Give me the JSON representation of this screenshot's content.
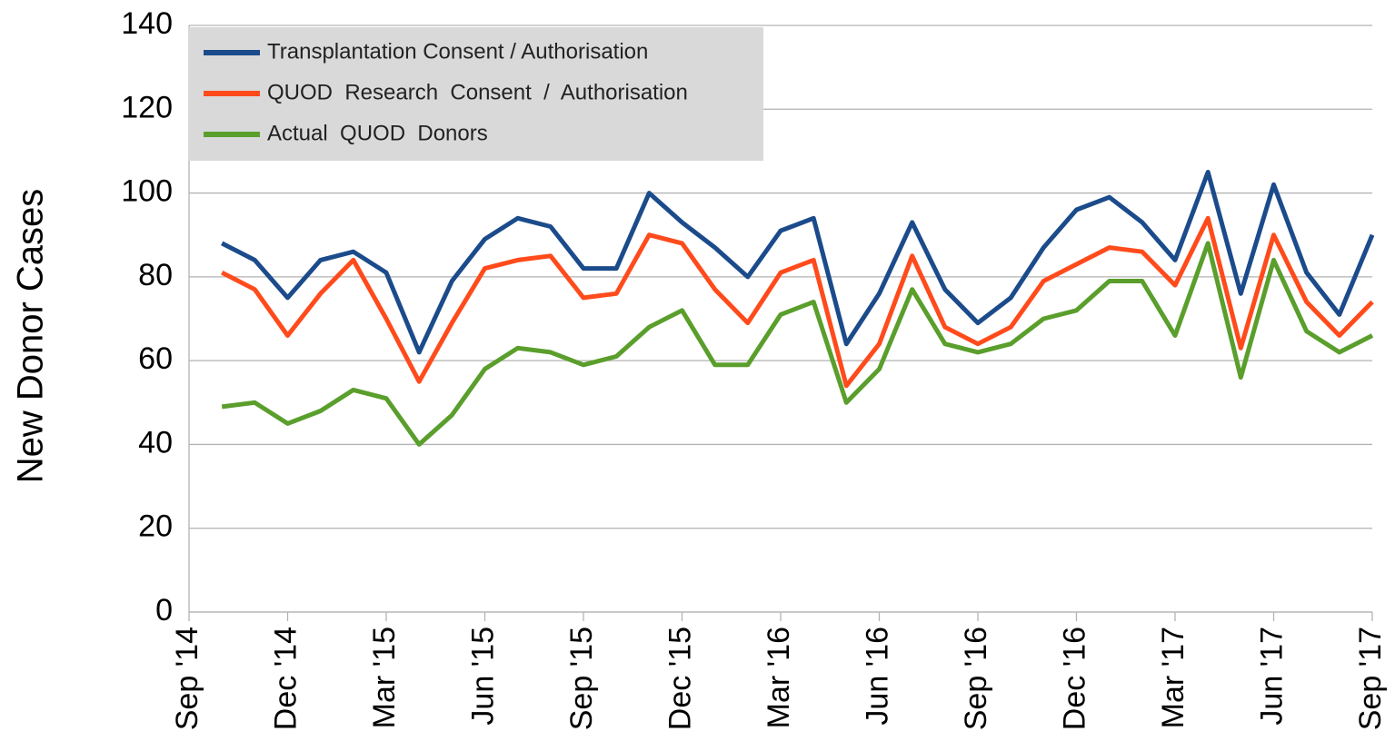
{
  "chart_data": {
    "type": "line",
    "y_label": "New Donor Cases",
    "categories": [
      "Sep '14",
      null,
      null,
      "Dec '14",
      null,
      null,
      "Mar '15",
      null,
      null,
      "Jun '15",
      null,
      null,
      "Sep '15",
      null,
      null,
      "Dec '15",
      null,
      null,
      "Mar '16",
      null,
      null,
      "Jun '16",
      null,
      null,
      "Sep '16",
      null,
      null,
      "Dec '16",
      null,
      null,
      "Mar '17",
      null,
      null,
      "Jun '17",
      null,
      null,
      "Sep '17"
    ],
    "series": [
      {
        "name": "Transplantation Consent / Authorisation",
        "color": "#1b4b8b",
        "values": [
          null,
          88,
          84,
          75,
          84,
          86,
          81,
          62,
          79,
          89,
          94,
          92,
          82,
          82,
          100,
          93,
          87,
          80,
          91,
          94,
          64,
          76,
          93,
          77,
          69,
          75,
          87,
          96,
          99,
          93,
          84,
          105,
          76,
          102,
          81,
          71,
          90
        ]
      },
      {
        "name": "QUOD  Research  Consent  /  Authorisation",
        "color": "#ff4b1c",
        "values": [
          null,
          81,
          77,
          66,
          76,
          84,
          70,
          55,
          69,
          82,
          84,
          85,
          75,
          76,
          90,
          88,
          77,
          69,
          81,
          84,
          54,
          64,
          85,
          68,
          64,
          68,
          79,
          83,
          87,
          86,
          78,
          94,
          63,
          90,
          74,
          66,
          74
        ]
      },
      {
        "name": "Actual  QUOD  Donors",
        "color": "#5a9e2c",
        "values": [
          null,
          49,
          50,
          45,
          48,
          53,
          51,
          40,
          47,
          58,
          63,
          62,
          59,
          61,
          68,
          72,
          59,
          59,
          71,
          74,
          50,
          58,
          77,
          64,
          62,
          64,
          70,
          72,
          79,
          79,
          66,
          88,
          56,
          84,
          67,
          62,
          66
        ]
      }
    ],
    "ylim": [
      0,
      140
    ],
    "yticks": [
      0,
      20,
      40,
      60,
      80,
      100,
      120,
      140
    ],
    "grid": true,
    "legend": "upper left"
  }
}
